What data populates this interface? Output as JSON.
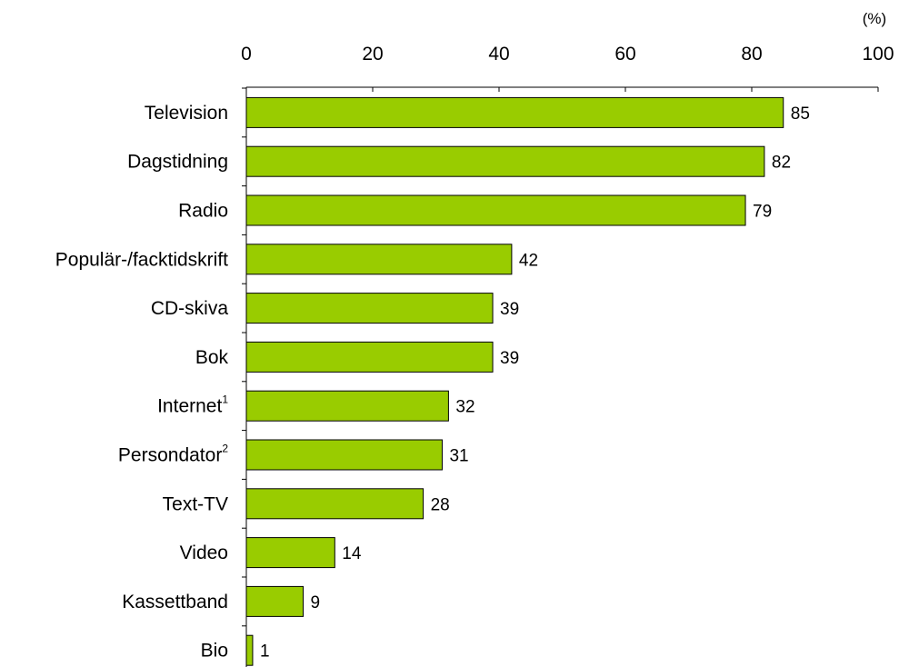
{
  "chart_data": {
    "type": "bar",
    "orientation": "horizontal",
    "unit": "(%)",
    "xlim": [
      0,
      100
    ],
    "xticks": [
      0,
      20,
      40,
      60,
      80,
      100
    ],
    "x_axis_position": "top",
    "grid": false,
    "bar_color": "#99cc00",
    "categories": [
      {
        "label": "Television",
        "sup": "",
        "value": 85
      },
      {
        "label": "Dagstidning",
        "sup": "",
        "value": 82
      },
      {
        "label": "Radio",
        "sup": "",
        "value": 79
      },
      {
        "label": "Populär-/facktidskrift",
        "sup": "",
        "value": 42
      },
      {
        "label": "CD-skiva",
        "sup": "",
        "value": 39
      },
      {
        "label": "Bok",
        "sup": "",
        "value": 39
      },
      {
        "label": "Internet",
        "sup": "1",
        "value": 32
      },
      {
        "label": "Persondator",
        "sup": "2",
        "value": 31
      },
      {
        "label": "Text-TV",
        "sup": "",
        "value": 28
      },
      {
        "label": "Video",
        "sup": "",
        "value": 14
      },
      {
        "label": "Kassettband",
        "sup": "",
        "value": 9
      },
      {
        "label": "Bio",
        "sup": "",
        "value": 1
      }
    ]
  }
}
